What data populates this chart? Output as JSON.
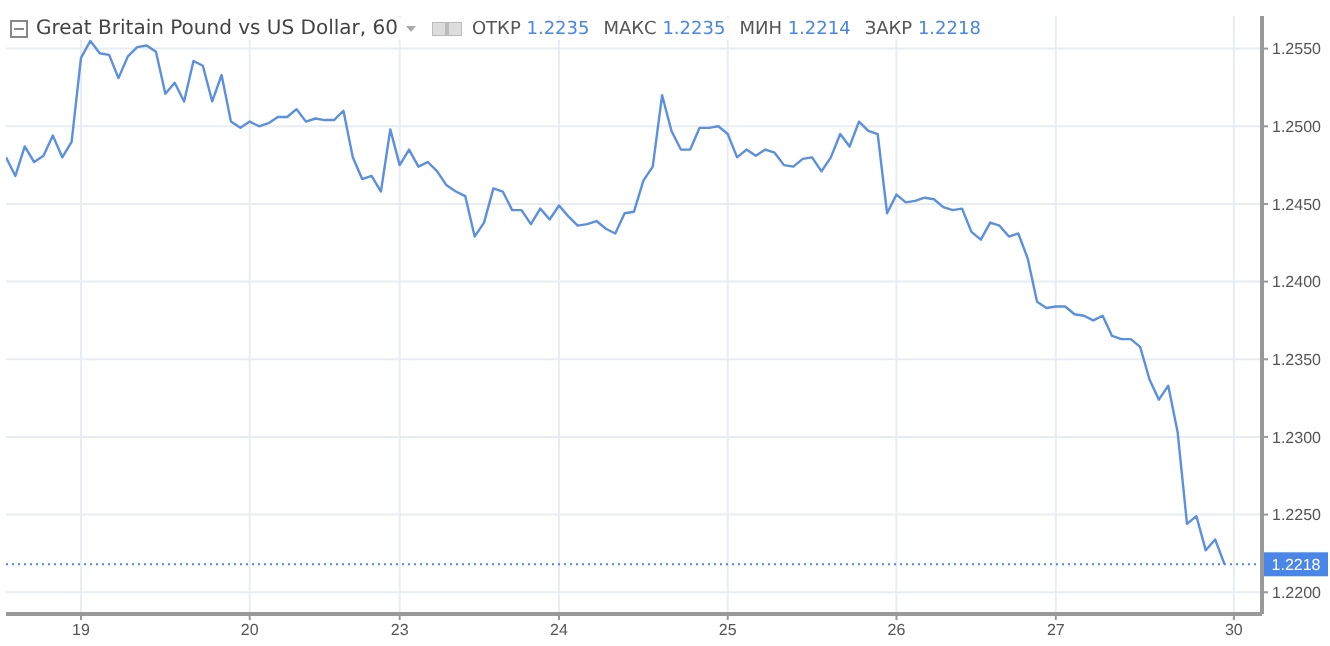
{
  "chart_data": {
    "type": "line",
    "title": "Great Britain Pound vs US Dollar, 60",
    "annotations": [
      "ОТКР 1.2235",
      "МАКС 1.2235",
      "МИН 1.2214",
      "ЗАКР 1.2218"
    ],
    "categories": [
      null,
      null,
      null,
      null,
      null,
      null,
      null,
      null,
      "19",
      null,
      null,
      null,
      null,
      null,
      null,
      null,
      null,
      null,
      null,
      null,
      null,
      null,
      null,
      null,
      null,
      null,
      "20",
      null,
      null,
      null,
      null,
      null,
      null,
      null,
      null,
      null,
      null,
      null,
      null,
      null,
      null,
      null,
      "23",
      null,
      null,
      null,
      null,
      null,
      null,
      null,
      null,
      null,
      null,
      null,
      null,
      null,
      null,
      null,
      null,
      "24",
      null,
      null,
      null,
      null,
      null,
      null,
      null,
      null,
      null,
      null,
      null,
      null,
      null,
      null,
      null,
      null,
      null,
      "25",
      null,
      null,
      null,
      null,
      null,
      null,
      null,
      null,
      null,
      null,
      null,
      null,
      null,
      null,
      null,
      null,
      null,
      "26",
      null,
      null,
      null,
      null,
      null,
      null,
      null,
      null,
      null,
      null,
      null,
      null,
      null,
      null,
      null,
      null,
      "27",
      null,
      null,
      null,
      null,
      null,
      null,
      null,
      null,
      null,
      null,
      null,
      null,
      null,
      null,
      null,
      null,
      null,
      null,
      "30",
      null,
      null,
      null
    ],
    "series": [
      {
        "color": "#5b8fe0",
        "values": [
          1.248,
          1.2468,
          1.2487,
          1.2477,
          1.2481,
          1.2494,
          1.248,
          1.249,
          1.2544,
          1.2555,
          1.2547,
          1.2546,
          1.2531,
          1.2545,
          1.2551,
          1.2552,
          1.2548,
          1.2521,
          1.2528,
          1.2516,
          1.2542,
          1.2539,
          1.2516,
          1.2533,
          1.2503,
          1.2499,
          1.2503,
          1.25,
          1.2502,
          1.2506,
          1.2506,
          1.2511,
          1.2503,
          1.2505,
          1.2504,
          1.2504,
          1.251,
          1.248,
          1.2466,
          1.2468,
          1.2458,
          1.2498,
          1.2475,
          1.2485,
          1.2474,
          1.2477,
          1.2471,
          1.2462,
          1.2458,
          1.2455,
          1.2429,
          1.2438,
          1.246,
          1.2458,
          1.2446,
          1.2446,
          1.2437,
          1.2447,
          1.244,
          1.2449,
          1.2442,
          1.2436,
          1.2437,
          1.2439,
          1.2434,
          1.2431,
          1.2444,
          1.2445,
          1.2465,
          1.2474,
          1.252,
          1.2497,
          1.2485,
          1.2485,
          1.2499,
          1.2499,
          1.25,
          1.2495,
          1.248,
          1.2485,
          1.2481,
          1.2485,
          1.2483,
          1.2475,
          1.2474,
          1.2479,
          1.248,
          1.2471,
          1.248,
          1.2495,
          1.2487,
          1.2503,
          1.2497,
          1.2495,
          1.2444,
          1.2456,
          1.2451,
          1.2452,
          1.2454,
          1.2453,
          1.2448,
          1.2446,
          1.2447,
          1.2432,
          1.2427,
          1.2438,
          1.2436,
          1.2429,
          1.2431,
          1.2415,
          1.2387,
          1.2383,
          1.2384,
          1.2384,
          1.2379,
          1.2378,
          1.2375,
          1.2378,
          1.2365,
          1.2363,
          1.2363,
          1.2358,
          1.2337,
          1.2324,
          1.2333,
          1.2303,
          1.2244,
          1.2249,
          1.2227,
          1.2234,
          1.2218,
          null,
          null,
          null,
          null
        ]
      }
    ],
    "ylim": [
      1.2186,
      1.2571
    ],
    "yticks": [
      {
        "value": 1.22,
        "label": "1.2200"
      },
      {
        "value": 1.225,
        "label": "1.2250"
      },
      {
        "value": 1.23,
        "label": "1.2300"
      },
      {
        "value": 1.235,
        "label": "1.2350"
      },
      {
        "value": 1.24,
        "label": "1.2400"
      },
      {
        "value": 1.245,
        "label": "1.2450"
      },
      {
        "value": 1.25,
        "label": "1.2500"
      },
      {
        "value": 1.255,
        "label": "1.2550"
      }
    ],
    "ref_lines": [
      {
        "axis": "y",
        "value": 1.2218,
        "label": "1.2218",
        "color": "#4a86e8",
        "line_style": "dotted"
      }
    ],
    "grid": true,
    "marker": "none",
    "line_style": "solid"
  }
}
